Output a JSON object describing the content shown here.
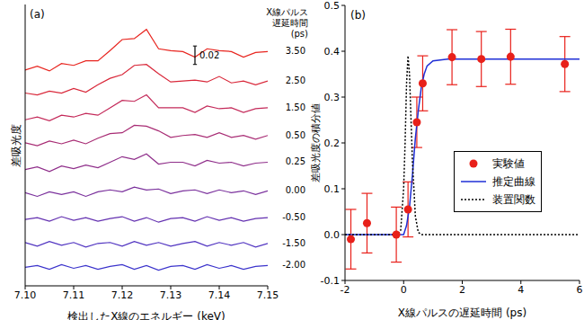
{
  "chart_data": [
    {
      "type": "line",
      "title": "(a)",
      "x_label": "検出したX線のエネルギー (keV)",
      "y_label": "差吸光度",
      "annotations": [
        "X線パルス",
        "遅延時間",
        "(ps)"
      ],
      "scale_bar": {
        "value": 0.02,
        "label": "0.02"
      },
      "x": [
        7.1,
        7.1025,
        7.105,
        7.1075,
        7.11,
        7.1125,
        7.115,
        7.1175,
        7.12,
        7.1225,
        7.125,
        7.1275,
        7.13,
        7.1325,
        7.135,
        7.1375,
        7.14,
        7.1425,
        7.145,
        7.1475,
        7.15
      ],
      "xlim": [
        7.1,
        7.15
      ],
      "xticks": [
        {
          "value": 7.1,
          "label": "7.10"
        },
        7.11,
        7.12,
        7.13,
        7.14,
        7.15
      ],
      "ylim": [
        0,
        0.305
      ],
      "tick_labels": "x",
      "series": [
        {
          "name": "3.50",
          "color": "#e8251f",
          "values": [
            0.234,
            0.238,
            0.233,
            0.241,
            0.239,
            0.244,
            0.244,
            0.255,
            0.267,
            0.268,
            0.278,
            0.257,
            0.255,
            0.254,
            0.248,
            0.257,
            0.255,
            0.254,
            0.248,
            0.253,
            0.254
          ]
        },
        {
          "name": "2.50",
          "color": "#d9283a",
          "values": [
            0.209,
            0.207,
            0.211,
            0.209,
            0.214,
            0.21,
            0.218,
            0.225,
            0.229,
            0.239,
            0.24,
            0.23,
            0.221,
            0.222,
            0.223,
            0.221,
            0.227,
            0.22,
            0.222,
            0.218,
            0.222
          ]
        },
        {
          "name": "1.50",
          "color": "#c42a5a",
          "values": [
            0.18,
            0.183,
            0.179,
            0.185,
            0.183,
            0.187,
            0.185,
            0.193,
            0.201,
            0.2,
            0.207,
            0.193,
            0.193,
            0.193,
            0.188,
            0.195,
            0.192,
            0.193,
            0.188,
            0.192,
            0.193
          ]
        },
        {
          "name": "0.50",
          "color": "#a82c74",
          "values": [
            0.155,
            0.152,
            0.157,
            0.154,
            0.158,
            0.154,
            0.16,
            0.165,
            0.166,
            0.174,
            0.173,
            0.168,
            0.161,
            0.163,
            0.164,
            0.161,
            0.166,
            0.161,
            0.163,
            0.159,
            0.163
          ]
        },
        {
          "name": "0.25",
          "color": "#8f2e8a",
          "values": [
            0.126,
            0.129,
            0.124,
            0.13,
            0.127,
            0.131,
            0.128,
            0.134,
            0.14,
            0.137,
            0.143,
            0.132,
            0.134,
            0.134,
            0.13,
            0.136,
            0.133,
            0.134,
            0.13,
            0.133,
            0.134
          ]
        },
        {
          "name": "0.00",
          "color": "#7a309c",
          "values": [
            0.101,
            0.097,
            0.102,
            0.099,
            0.102,
            0.097,
            0.102,
            0.104,
            0.102,
            0.107,
            0.104,
            0.105,
            0.1,
            0.103,
            0.104,
            0.1,
            0.104,
            0.101,
            0.103,
            0.099,
            0.103
          ]
        },
        {
          "name": "-0.50",
          "color": "#6330b0",
          "values": [
            0.072,
            0.074,
            0.07,
            0.075,
            0.071,
            0.074,
            0.07,
            0.073,
            0.075,
            0.07,
            0.074,
            0.069,
            0.073,
            0.074,
            0.07,
            0.075,
            0.071,
            0.074,
            0.07,
            0.073,
            0.074
          ]
        },
        {
          "name": "-1.50",
          "color": "#4f32c0",
          "values": [
            0.047,
            0.043,
            0.048,
            0.044,
            0.047,
            0.042,
            0.046,
            0.047,
            0.043,
            0.048,
            0.044,
            0.047,
            0.043,
            0.046,
            0.048,
            0.043,
            0.047,
            0.044,
            0.047,
            0.042,
            0.046
          ]
        },
        {
          "name": "-2.00",
          "color": "#3c34cc",
          "values": [
            0.02,
            0.022,
            0.018,
            0.023,
            0.019,
            0.022,
            0.018,
            0.021,
            0.023,
            0.018,
            0.022,
            0.017,
            0.021,
            0.022,
            0.018,
            0.023,
            0.019,
            0.022,
            0.018,
            0.021,
            0.022
          ]
        }
      ]
    },
    {
      "type": "scatter",
      "title": "(b)",
      "x_label": "X線パルスの遅延時間 (ps)",
      "y_label": "差吸光度の積分値",
      "xlim": [
        -2,
        6
      ],
      "xticks": [
        -2,
        0,
        2,
        4,
        6
      ],
      "ylim": [
        -0.1,
        0.5
      ],
      "yticks": [
        -0.1,
        {
          "value": 0,
          "label": "0.0"
        },
        0.1,
        0.2,
        0.3,
        0.4,
        0.5
      ],
      "legend": "center right",
      "series": [
        {
          "name": "実験値",
          "type": "scatter",
          "color": "#e8201a",
          "marker": "circle",
          "x": [
            -1.8,
            -1.25,
            -0.25,
            0.15,
            0.45,
            0.65,
            1.65,
            2.65,
            3.65,
            5.5
          ],
          "values": [
            -0.01,
            0.025,
            0.0,
            0.055,
            0.245,
            0.33,
            0.387,
            0.383,
            0.388,
            0.372
          ],
          "errors": [
            0.065,
            0.065,
            0.06,
            0.06,
            0.055,
            0.06,
            0.06,
            0.06,
            0.06,
            0.06
          ]
        },
        {
          "name": "推定曲線",
          "type": "line",
          "color": "#1f2fd6",
          "line_style": "solid",
          "x": [
            -2,
            0,
            0.1,
            0.2,
            0.3,
            0.4,
            0.5,
            0.6,
            0.7,
            0.8,
            1.0,
            1.5,
            6
          ],
          "values": [
            0,
            0,
            0.02,
            0.06,
            0.13,
            0.21,
            0.27,
            0.32,
            0.35,
            0.368,
            0.379,
            0.383,
            0.383
          ]
        },
        {
          "name": "装置関数",
          "type": "line",
          "color": "#000000",
          "line_style": "dotted",
          "x": [
            -2,
            -0.2,
            -0.1,
            0,
            0.05,
            0.1,
            0.15,
            0.2,
            0.3,
            0.4,
            0.5,
            0.6,
            6
          ],
          "values": [
            0,
            0,
            0.01,
            0.1,
            0.2,
            0.33,
            0.39,
            0.35,
            0.16,
            0.04,
            0.005,
            0,
            0
          ]
        }
      ]
    }
  ]
}
